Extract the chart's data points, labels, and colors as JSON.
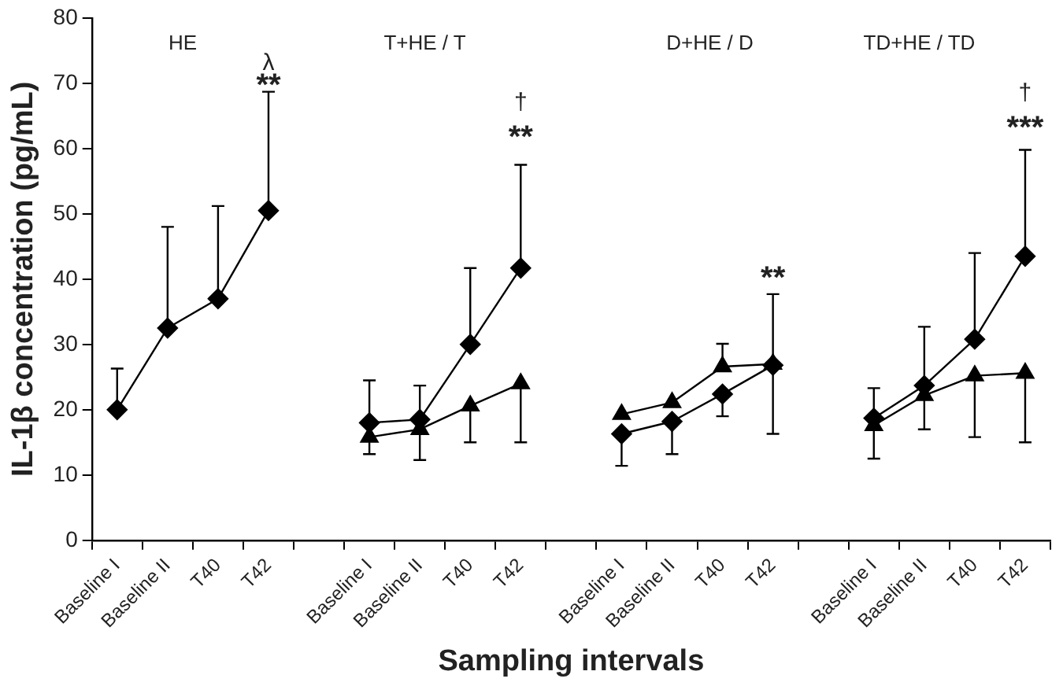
{
  "chart_data": {
    "type": "line",
    "xlabel": "Sampling intervals",
    "ylabel": "IL-1β concentration (pg/mL)",
    "categories": [
      "Baseline I",
      "Baseline II",
      "T40",
      "T42",
      null,
      "Baseline I",
      "Baseline II",
      "T40",
      "T42",
      null,
      "Baseline I",
      "Baseline II",
      "T40",
      "T42",
      null,
      "Baseline I",
      "Baseline II",
      "T40",
      "T42"
    ],
    "ylim": [
      0,
      80
    ],
    "yticks": [
      0,
      10,
      20,
      30,
      40,
      50,
      60,
      70,
      80
    ],
    "grid": false,
    "legend": false,
    "line_style": "solid",
    "series": [
      {
        "color": "#000000",
        "marker": "diamond",
        "values": [
          20,
          32.5,
          37,
          50.5,
          null,
          18,
          18.5,
          30,
          41.7,
          null,
          16.3,
          18.2,
          22.4,
          26.8,
          null,
          18.7,
          23.7,
          30.8,
          43.5
        ],
        "errors": [
          [
            20,
            26.3
          ],
          [
            32.5,
            48
          ],
          [
            37,
            51.2
          ],
          [
            50.5,
            68.7
          ],
          null,
          [
            18,
            24.5
          ],
          [
            18.5,
            23.7
          ],
          [
            30,
            41.7
          ],
          [
            41.7,
            57.5
          ],
          null,
          [
            11.4,
            16.3
          ],
          [
            13.2,
            18.2
          ],
          [
            19,
            22.4
          ],
          [
            26.8,
            37.7
          ],
          null,
          [
            18.7,
            23.3
          ],
          [
            23.7,
            32.7
          ],
          [
            30.8,
            44
          ],
          [
            43.5,
            59.8
          ]
        ]
      },
      {
        "color": "#000000",
        "marker": "triangle",
        "values": [
          null,
          null,
          null,
          null,
          null,
          15.8,
          17,
          20.6,
          24,
          null,
          19.3,
          21.1,
          26.6,
          27,
          null,
          17.6,
          22.2,
          25.2,
          25.6
        ],
        "errors": [
          null,
          null,
          null,
          null,
          null,
          [
            13.2,
            15.8
          ],
          [
            12.3,
            17
          ],
          [
            15,
            20.6
          ],
          [
            15,
            24
          ],
          null,
          null,
          null,
          [
            26.6,
            30.1
          ],
          [
            16.3,
            27
          ],
          null,
          [
            12.5,
            17.6
          ],
          [
            17,
            22.2
          ],
          [
            15.8,
            25.2
          ],
          [
            15,
            25.6
          ]
        ]
      }
    ],
    "annotations": [
      "HE",
      "T+HE / T",
      "D+HE / D",
      "TD+HE / TD",
      "λ",
      "**",
      "†",
      "**",
      "**",
      "†",
      "***"
    ]
  }
}
